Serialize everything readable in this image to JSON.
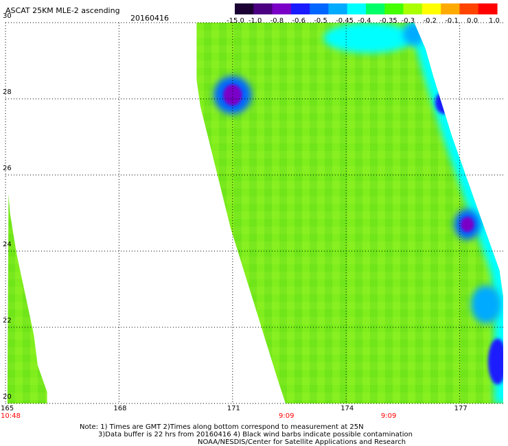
{
  "header": {
    "title": "ASCAT 25KM MLE-2 ascending",
    "date": "20160416"
  },
  "colorbar": {
    "labels": [
      "-15.0",
      "-1.0",
      "-0.8",
      "-0.6",
      "-0.5",
      "-0.45",
      "-0.4",
      "-0.35",
      "-0.3",
      "-0.2",
      "-0.1",
      "0.0",
      "1.0"
    ],
    "colors": [
      "#1a0033",
      "#4a0080",
      "#7a00c8",
      "#1a1aff",
      "#0066ff",
      "#00aaff",
      "#00ffff",
      "#00ff66",
      "#44ff00",
      "#aaff00",
      "#ffff00",
      "#ffaa00",
      "#ff4400",
      "#ff0000"
    ]
  },
  "axes": {
    "lat_labels": [
      "30",
      "28",
      "26",
      "24",
      "22",
      "20"
    ],
    "lat_values": [
      30,
      28,
      26,
      24,
      22,
      20
    ],
    "lon_labels": [
      "165",
      "168",
      "171",
      "174",
      "177"
    ],
    "lon_values": [
      165,
      168,
      171,
      174,
      177
    ],
    "lon_range": [
      165,
      178.15
    ],
    "lat_range": [
      20,
      30
    ],
    "grid": true
  },
  "swaths": {
    "left": {
      "outline": [
        [
          165.08,
          25.5
        ],
        [
          165.05,
          20.0
        ],
        [
          166.1,
          20.0
        ],
        [
          166.1,
          20.3
        ],
        [
          165.85,
          21.0
        ],
        [
          165.75,
          21.8
        ],
        [
          165.6,
          22.5
        ],
        [
          165.45,
          23.2
        ],
        [
          165.3,
          23.9
        ],
        [
          165.2,
          24.5
        ],
        [
          165.12,
          25.0
        ]
      ]
    },
    "right": {
      "outline": [
        [
          170.05,
          30.0
        ],
        [
          175.8,
          30.0
        ],
        [
          176.1,
          29.3
        ],
        [
          176.3,
          28.6
        ],
        [
          176.55,
          27.8
        ],
        [
          176.8,
          27.0
        ],
        [
          177.05,
          26.3
        ],
        [
          177.3,
          25.6
        ],
        [
          177.55,
          24.9
        ],
        [
          177.8,
          24.2
        ],
        [
          178.05,
          23.5
        ],
        [
          178.15,
          22.8
        ],
        [
          178.15,
          20.0
        ],
        [
          172.4,
          20.0
        ],
        [
          172.2,
          20.6
        ],
        [
          171.95,
          21.4
        ],
        [
          171.7,
          22.2
        ],
        [
          171.45,
          23.0
        ],
        [
          171.2,
          23.8
        ],
        [
          170.95,
          24.6
        ],
        [
          170.75,
          25.4
        ],
        [
          170.55,
          26.2
        ],
        [
          170.35,
          27.0
        ],
        [
          170.15,
          27.8
        ],
        [
          170.05,
          28.5
        ],
        [
          170.05,
          29.2
        ]
      ]
    }
  },
  "patches": [
    {
      "lon": 171.0,
      "lat": 28.1,
      "rx": 0.5,
      "ry": 0.5,
      "value": -0.6
    },
    {
      "lon": 171.0,
      "lat": 28.1,
      "rx": 0.25,
      "ry": 0.28,
      "value": -1.0
    },
    {
      "lon": 174.6,
      "lat": 29.6,
      "rx": 1.2,
      "ry": 0.4,
      "value": -0.45
    },
    {
      "lon": 175.8,
      "lat": 29.7,
      "rx": 0.3,
      "ry": 0.3,
      "value": -0.5
    },
    {
      "lon": 176.6,
      "lat": 27.9,
      "rx": 0.25,
      "ry": 0.3,
      "value": -0.8
    },
    {
      "lon": 177.2,
      "lat": 24.7,
      "rx": 0.35,
      "ry": 0.4,
      "value": -0.6
    },
    {
      "lon": 177.2,
      "lat": 24.7,
      "rx": 0.18,
      "ry": 0.2,
      "value": -1.0
    },
    {
      "lon": 177.7,
      "lat": 22.6,
      "rx": 0.4,
      "ry": 0.5,
      "value": -0.5
    },
    {
      "lon": 178.0,
      "lat": 21.1,
      "rx": 0.25,
      "ry": 0.6,
      "value": -0.8
    }
  ],
  "time_labels": [
    {
      "lon": 165,
      "text": "10:48"
    },
    {
      "lon": 172.4,
      "text": "9:09"
    },
    {
      "lon": 175.1,
      "text": "9:09"
    }
  ],
  "notes": {
    "line1": "Note: 1) Times are GMT 2)Times along bottom correspond to measurement at 25N",
    "line2": "3)Data buffer is 22 hrs from 20160416 4) Black wind barbs indicate possible contamination",
    "line3": "NOAA/NESDIS/Center for Satellite Applications and Research"
  }
}
